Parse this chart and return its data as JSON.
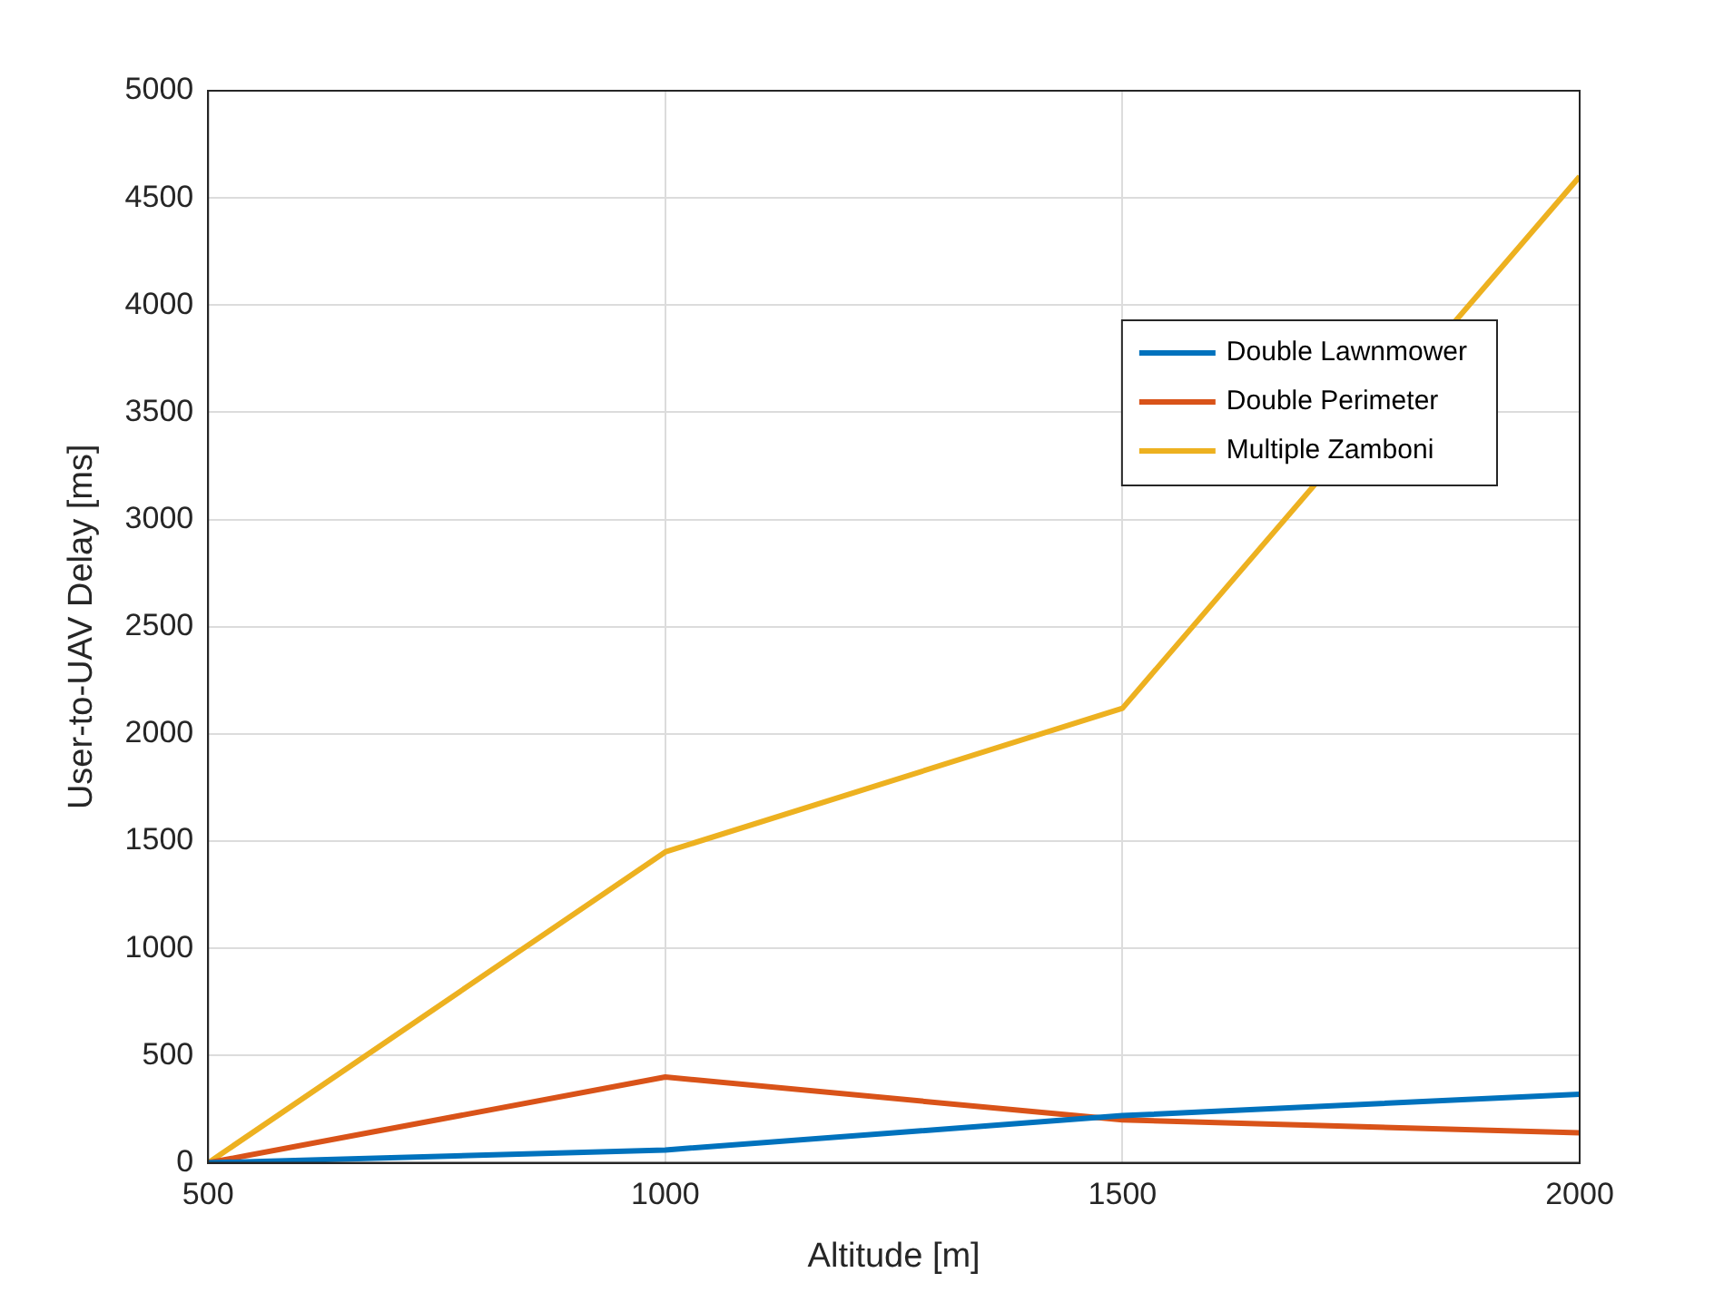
{
  "chart_data": {
    "type": "line",
    "xlabel": "Altitude [m]",
    "ylabel": "User-to-UAV Delay [ms]",
    "x": [
      500,
      1000,
      1500,
      2000
    ],
    "series": [
      {
        "name": "Double Lawnmower",
        "color": "#0072bd",
        "values": [
          0,
          60,
          220,
          320
        ]
      },
      {
        "name": "Double Perimeter",
        "color": "#d95319",
        "values": [
          0,
          400,
          200,
          140
        ]
      },
      {
        "name": "Multiple Zamboni",
        "color": "#edb120",
        "values": [
          0,
          1450,
          2120,
          4600
        ]
      }
    ],
    "xlim": [
      500,
      2000
    ],
    "xticks": [
      500,
      1000,
      1500,
      2000
    ],
    "ylim": [
      0,
      5000
    ],
    "yticks": [
      0,
      500,
      1000,
      1500,
      2000,
      2500,
      3000,
      3500,
      4000,
      4500,
      5000
    ],
    "grid": true,
    "legend": "top right",
    "marker": "none",
    "line_style": "solid"
  }
}
